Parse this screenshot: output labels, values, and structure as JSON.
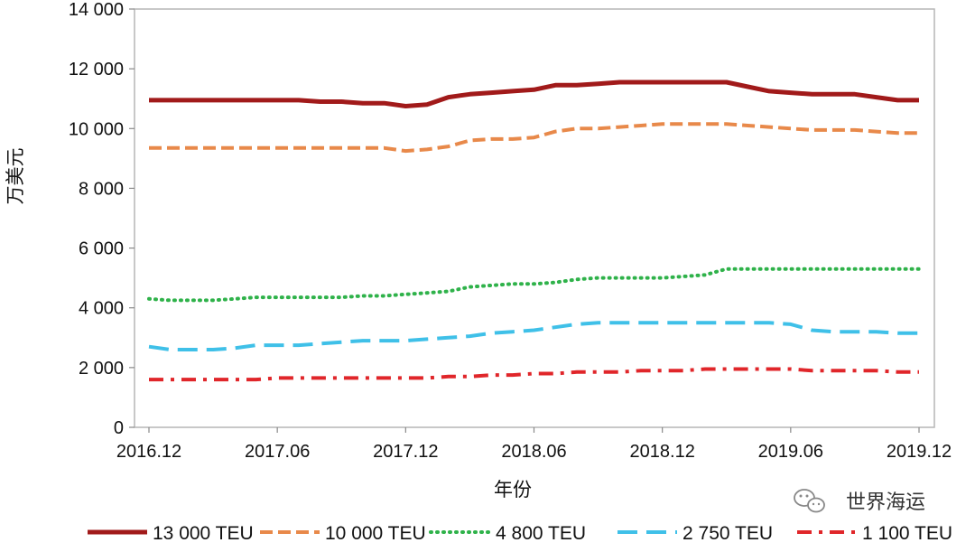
{
  "chart_data": {
    "type": "line",
    "xlabel": "年份",
    "ylabel": "万美元",
    "ylim": [
      0,
      14000
    ],
    "y_ticks": [
      "0",
      "2 000",
      "4 000",
      "6 000",
      "8 000",
      "10 000",
      "12 000",
      "14 000"
    ],
    "y_tick_values": [
      0,
      2000,
      4000,
      6000,
      8000,
      10000,
      12000,
      14000
    ],
    "x_ticks": [
      "2016.12",
      "2017.06",
      "2017.12",
      "2018.06",
      "2018.12",
      "2019.06",
      "2019.12"
    ],
    "x": [
      "2016.12",
      "2017.01",
      "2017.02",
      "2017.03",
      "2017.04",
      "2017.05",
      "2017.06",
      "2017.07",
      "2017.08",
      "2017.09",
      "2017.10",
      "2017.11",
      "2017.12",
      "2018.01",
      "2018.02",
      "2018.03",
      "2018.04",
      "2018.05",
      "2018.06",
      "2018.07",
      "2018.08",
      "2018.09",
      "2018.10",
      "2018.11",
      "2018.12",
      "2019.01",
      "2019.02",
      "2019.03",
      "2019.04",
      "2019.05",
      "2019.06",
      "2019.07",
      "2019.08",
      "2019.09",
      "2019.10",
      "2019.11",
      "2019.12"
    ],
    "grid": false,
    "legend_position": "bottom",
    "series": [
      {
        "name": "13 000 TEU",
        "color": "#a11a1a",
        "style": "solid",
        "values": [
          10950,
          10950,
          10950,
          10950,
          10950,
          10950,
          10950,
          10950,
          10900,
          10900,
          10850,
          10850,
          10750,
          10800,
          11050,
          11150,
          11200,
          11250,
          11300,
          11450,
          11450,
          11500,
          11550,
          11550,
          11550,
          11550,
          11550,
          11550,
          11400,
          11250,
          11200,
          11150,
          11150,
          11150,
          11050,
          10950,
          10950
        ]
      },
      {
        "name": "10 000 TEU",
        "color": "#e8894a",
        "style": "dashed",
        "values": [
          9350,
          9350,
          9350,
          9350,
          9350,
          9350,
          9350,
          9350,
          9350,
          9350,
          9350,
          9350,
          9250,
          9300,
          9400,
          9600,
          9650,
          9650,
          9700,
          9900,
          10000,
          10000,
          10050,
          10100,
          10150,
          10150,
          10150,
          10150,
          10100,
          10050,
          10000,
          9950,
          9950,
          9950,
          9900,
          9850,
          9850
        ]
      },
      {
        "name": "4 800 TEU",
        "color": "#2fb24a",
        "style": "dotted",
        "values": [
          4300,
          4250,
          4250,
          4250,
          4300,
          4350,
          4350,
          4350,
          4350,
          4350,
          4400,
          4400,
          4450,
          4500,
          4550,
          4700,
          4750,
          4800,
          4800,
          4850,
          4950,
          5000,
          5000,
          5000,
          5000,
          5050,
          5100,
          5300,
          5300,
          5300,
          5300,
          5300,
          5300,
          5300,
          5300,
          5300,
          5300
        ]
      },
      {
        "name": "2 750 TEU",
        "color": "#3fc0e8",
        "style": "dashed",
        "values": [
          2700,
          2600,
          2600,
          2600,
          2650,
          2750,
          2750,
          2750,
          2800,
          2850,
          2900,
          2900,
          2900,
          2950,
          3000,
          3050,
          3150,
          3200,
          3250,
          3350,
          3450,
          3500,
          3500,
          3500,
          3500,
          3500,
          3500,
          3500,
          3500,
          3500,
          3450,
          3250,
          3200,
          3200,
          3200,
          3150,
          3150
        ]
      },
      {
        "name": "1 100 TEU",
        "color": "#e0262a",
        "style": "dashdot",
        "values": [
          1600,
          1600,
          1600,
          1600,
          1600,
          1600,
          1650,
          1650,
          1650,
          1650,
          1650,
          1650,
          1650,
          1650,
          1700,
          1700,
          1750,
          1750,
          1800,
          1800,
          1850,
          1850,
          1850,
          1900,
          1900,
          1900,
          1950,
          1950,
          1950,
          1950,
          1950,
          1900,
          1900,
          1900,
          1900,
          1850,
          1850
        ]
      }
    ]
  },
  "watermark": {
    "text": "世界海运",
    "icon": "wechat-icon"
  }
}
